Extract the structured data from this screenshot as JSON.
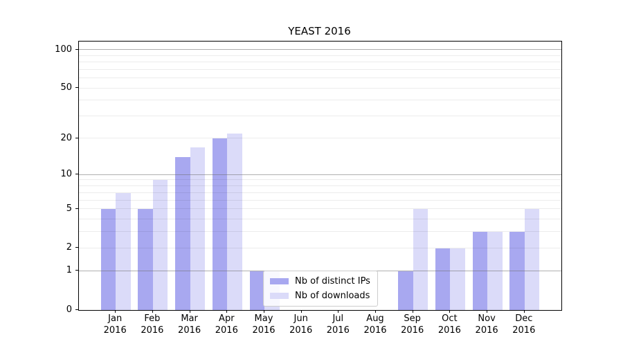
{
  "chart_data": {
    "type": "bar",
    "title": "YEAST 2016",
    "categories": [
      "Jan 2016",
      "Feb 2016",
      "Mar 2016",
      "Apr 2016",
      "May 2016",
      "Jun 2016",
      "Jul 2016",
      "Aug 2016",
      "Sep 2016",
      "Oct 2016",
      "Nov 2016",
      "Dec 2016"
    ],
    "series": [
      {
        "name": "Nb of distinct IPs",
        "color": "#a8a8f0",
        "values": [
          5,
          5,
          14,
          20,
          1,
          0,
          0,
          0,
          1,
          2,
          3,
          3
        ]
      },
      {
        "name": "Nb of downloads",
        "color": "#dbdbf9",
        "values": [
          7,
          9,
          17,
          22,
          1,
          0,
          0,
          0,
          5,
          2,
          3,
          5
        ]
      }
    ],
    "xlabel": "",
    "ylabel": "",
    "y_ticks": [
      0,
      1,
      2,
      5,
      10,
      20,
      50,
      100
    ],
    "y_minor_gridlines": [
      2,
      3,
      4,
      5,
      6,
      7,
      8,
      9,
      20,
      30,
      40,
      50,
      60,
      70,
      80,
      90
    ],
    "y_major_gridlines": [
      1,
      10,
      100
    ],
    "y_scale": "log10(1+y)",
    "ylim": [
      0,
      116
    ],
    "grid": "horizontal",
    "legend_position": "lower center",
    "background_color": "#ffffff",
    "grid_major_color": "#b0b0b0",
    "grid_minor_color": "#ebebeb"
  }
}
